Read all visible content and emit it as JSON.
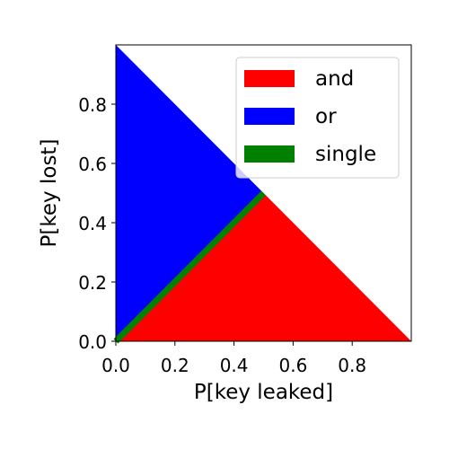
{
  "chart_data": {
    "type": "area",
    "title": "",
    "xlabel": "P[key leaked]",
    "ylabel": "P[key lost]",
    "xlim": [
      0,
      1
    ],
    "ylim": [
      0,
      1
    ],
    "x_ticks": [
      0.0,
      0.2,
      0.4,
      0.6,
      0.8
    ],
    "y_ticks": [
      0.0,
      0.2,
      0.4,
      0.6,
      0.8
    ],
    "x_tick_labels": [
      "0.0",
      "0.2",
      "0.4",
      "0.6",
      "0.8"
    ],
    "y_tick_labels": [
      "0.0",
      "0.2",
      "0.4",
      "0.6",
      "0.8"
    ],
    "grid": false,
    "legend_position": "upper-right",
    "series": [
      {
        "name": "and",
        "color": "#ff0000",
        "region": [
          [
            0,
            0
          ],
          [
            1,
            0
          ],
          [
            0.5,
            0.5
          ]
        ]
      },
      {
        "name": "or",
        "color": "#0000ff",
        "region": [
          [
            0,
            0
          ],
          [
            0,
            1
          ],
          [
            0.5,
            0.5
          ]
        ]
      },
      {
        "name": "single",
        "color": "#008000",
        "region": [
          [
            0,
            0
          ],
          [
            0.5,
            0.5
          ]
        ]
      }
    ]
  }
}
